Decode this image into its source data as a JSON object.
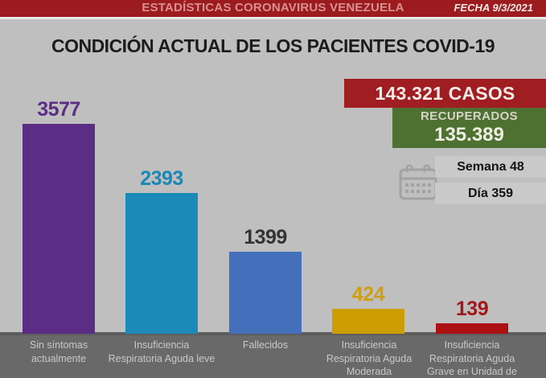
{
  "header": {
    "title": "ESTADÍSTICAS CORONAVIRUS VENEZUELA",
    "date_label": "FECHA 9/3/2021"
  },
  "page_title": "CONDICIÓN ACTUAL DE LOS PACIENTES COVID-19",
  "stats_panel": {
    "cases": "143.321 CASOS",
    "recovered_label": "RECUPERADOS",
    "recovered_value": "135.389",
    "week": "Semana 48",
    "day": "Día 359",
    "icon": "calendar-icon"
  },
  "chart_data": {
    "type": "bar",
    "title": "CONDICIÓN ACTUAL DE LOS PACIENTES COVID-19",
    "categories": [
      "Sin síntomas\nactualmente",
      "Insuficiencia\nRespiratoria Aguda leve",
      "Fallecidos",
      "Insuficiencia\nRespiratoria Aguda\nModerada",
      "Insuficiencia\nRespiratoria Aguda\nGrave en Unidad de"
    ],
    "values": [
      3577,
      2393,
      1399,
      424,
      139
    ],
    "bar_colors": [
      "#5b2d84",
      "#1c8ab8",
      "#4470bb",
      "#cc9e04",
      "#ab1013"
    ],
    "value_label_colors": [
      "#5b2d84",
      "#1b87b6",
      "#333333",
      "#cf9f10",
      "#a3161a"
    ],
    "ylim": [
      0,
      3800
    ],
    "grid": false,
    "legend": false,
    "value_labels_shown": true,
    "xlabel": "",
    "ylabel": ""
  },
  "colors": {
    "background": "#bfbfbf",
    "accent_red": "#9c1b1f",
    "banner_red": "#a01d21",
    "banner_green": "#4e7132",
    "footer_band": "#696969",
    "chip_gray": "#c9c9c9"
  }
}
